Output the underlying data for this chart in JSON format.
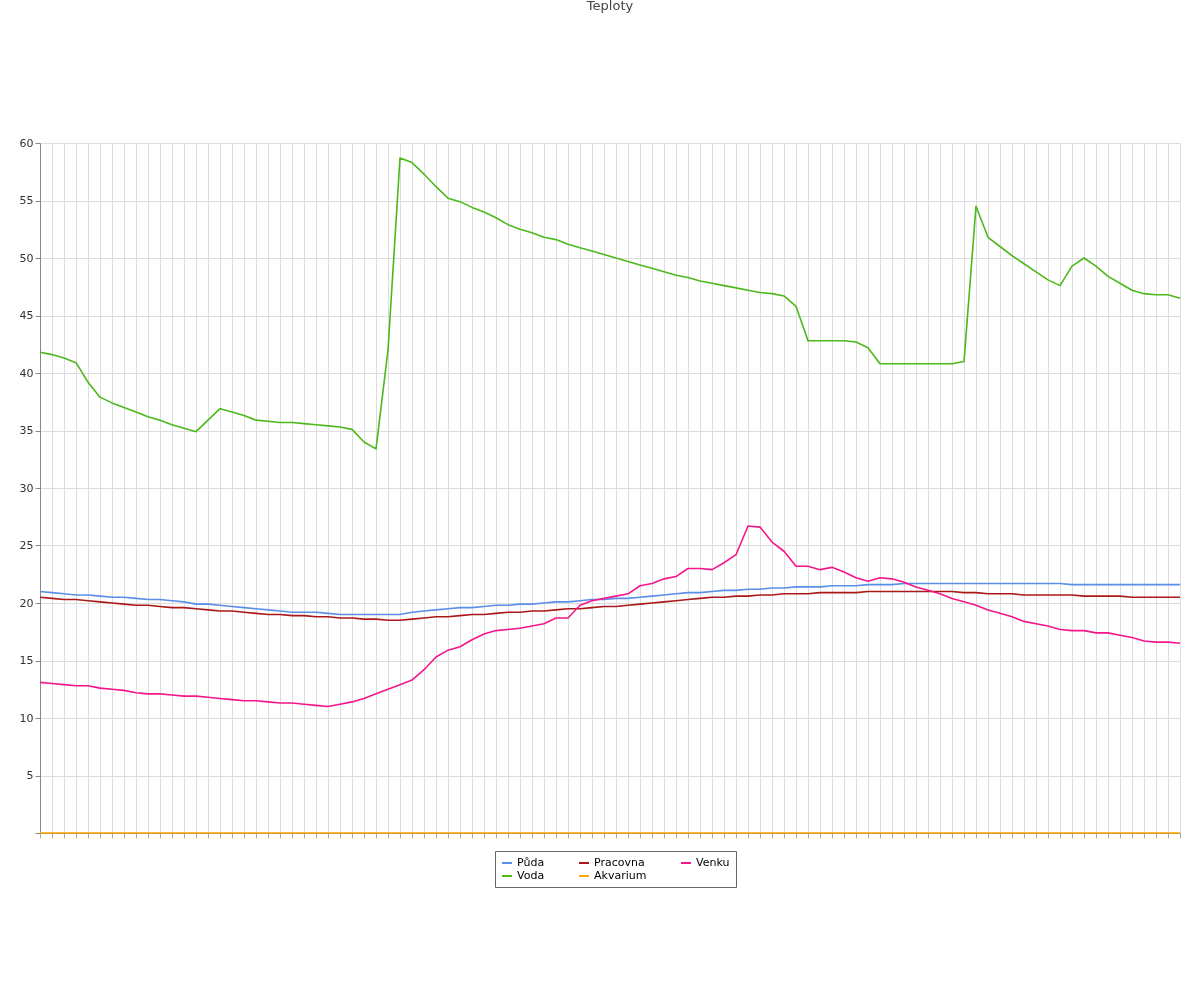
{
  "chart_data": {
    "type": "line",
    "title": "Teploty",
    "categories": [
      null,
      null,
      null,
      null,
      null,
      null,
      null,
      null,
      null,
      null,
      null,
      null,
      null,
      null,
      null,
      null,
      null,
      null,
      null,
      null,
      null,
      null,
      null,
      null,
      null,
      null,
      null,
      null,
      null,
      null,
      null,
      null,
      null,
      null,
      null,
      null,
      null,
      null,
      null,
      null,
      null,
      null,
      null,
      null,
      null,
      null,
      null,
      null,
      null,
      null,
      null,
      null,
      null,
      null,
      null,
      null,
      null,
      null,
      null,
      null,
      null,
      null,
      null,
      null,
      null,
      null,
      null,
      null,
      null,
      null,
      null,
      null,
      null,
      null,
      null,
      null,
      null,
      null,
      null,
      null,
      null,
      null,
      null,
      null,
      null,
      null,
      null,
      null,
      null,
      null,
      null,
      null,
      null,
      null,
      null,
      null
    ],
    "series": [
      {
        "name": "Půda",
        "color": "#5a8ee8",
        "values": [
          21.0,
          20.9,
          20.8,
          20.7,
          20.7,
          20.6,
          20.5,
          20.5,
          20.4,
          20.3,
          20.3,
          20.2,
          20.1,
          19.9,
          19.9,
          19.8,
          19.7,
          19.6,
          19.5,
          19.4,
          19.3,
          19.2,
          19.2,
          19.2,
          19.1,
          19.0,
          19.0,
          19.0,
          19.0,
          19.0,
          19.0,
          19.2,
          19.3,
          19.4,
          19.5,
          19.6,
          19.6,
          19.7,
          19.8,
          19.8,
          19.9,
          19.9,
          20.0,
          20.1,
          20.1,
          20.2,
          20.3,
          20.3,
          20.4,
          20.4,
          20.5,
          20.6,
          20.7,
          20.8,
          20.9,
          20.9,
          21.0,
          21.1,
          21.1,
          21.2,
          21.2,
          21.3,
          21.3,
          21.4,
          21.4,
          21.4,
          21.5,
          21.5,
          21.5,
          21.6,
          21.6,
          21.6,
          21.7,
          21.7,
          21.7,
          21.7,
          21.7,
          21.7,
          21.7,
          21.7,
          21.7,
          21.7,
          21.7,
          21.7,
          21.7,
          21.7,
          21.6,
          21.6,
          21.6,
          21.6,
          21.6,
          21.6,
          21.6,
          21.6,
          21.6,
          21.6
        ]
      },
      {
        "name": "Pracovna",
        "color": "#aa1818",
        "values": [
          20.5,
          20.4,
          20.3,
          20.3,
          20.2,
          20.1,
          20.0,
          19.9,
          19.8,
          19.8,
          19.7,
          19.6,
          19.6,
          19.5,
          19.4,
          19.3,
          19.3,
          19.2,
          19.1,
          19.0,
          19.0,
          18.9,
          18.9,
          18.8,
          18.8,
          18.7,
          18.7,
          18.6,
          18.6,
          18.5,
          18.5,
          18.6,
          18.7,
          18.8,
          18.8,
          18.9,
          19.0,
          19.0,
          19.1,
          19.2,
          19.2,
          19.3,
          19.3,
          19.4,
          19.5,
          19.5,
          19.6,
          19.7,
          19.7,
          19.8,
          19.9,
          20.0,
          20.1,
          20.2,
          20.3,
          20.4,
          20.5,
          20.5,
          20.6,
          20.6,
          20.7,
          20.7,
          20.8,
          20.8,
          20.8,
          20.9,
          20.9,
          20.9,
          20.9,
          21.0,
          21.0,
          21.0,
          21.0,
          21.0,
          21.0,
          21.0,
          21.0,
          20.9,
          20.9,
          20.8,
          20.8,
          20.8,
          20.7,
          20.7,
          20.7,
          20.7,
          20.7,
          20.6,
          20.6,
          20.6,
          20.6,
          20.5,
          20.5,
          20.5,
          20.5,
          20.5
        ]
      },
      {
        "name": "Venku",
        "color": "#f5168c",
        "values": [
          13.1,
          13.0,
          12.9,
          12.8,
          12.8,
          12.6,
          12.5,
          12.4,
          12.2,
          12.1,
          12.1,
          12.0,
          11.9,
          11.9,
          11.8,
          11.7,
          11.6,
          11.5,
          11.5,
          11.4,
          11.3,
          11.3,
          11.2,
          11.1,
          11.0,
          11.2,
          11.4,
          11.7,
          12.1,
          12.5,
          12.9,
          13.3,
          14.2,
          15.3,
          15.9,
          16.2,
          16.8,
          17.3,
          17.6,
          17.7,
          17.8,
          18.0,
          18.2,
          18.7,
          18.7,
          19.8,
          20.2,
          20.4,
          20.6,
          20.8,
          21.5,
          21.7,
          22.1,
          22.3,
          23.0,
          23.0,
          22.9,
          23.5,
          24.2,
          26.7,
          26.6,
          25.3,
          24.5,
          23.2,
          23.2,
          22.9,
          23.1,
          22.7,
          22.2,
          21.9,
          22.2,
          22.1,
          21.8,
          21.4,
          21.1,
          20.8,
          20.4,
          20.1,
          19.8,
          19.4,
          19.1,
          18.8,
          18.4,
          18.2,
          18.0,
          17.7,
          17.6,
          17.6,
          17.4,
          17.4,
          17.2,
          17.0,
          16.7,
          16.6,
          16.6,
          16.5
        ]
      },
      {
        "name": "Voda",
        "color": "#4cb81a",
        "values": [
          41.8,
          41.6,
          41.3,
          40.9,
          39.2,
          37.9,
          37.4,
          37.0,
          36.6,
          36.2,
          35.9,
          35.5,
          35.2,
          34.9,
          35.9,
          36.9,
          36.6,
          36.3,
          35.9,
          35.8,
          35.7,
          35.7,
          35.6,
          35.5,
          35.4,
          35.3,
          35.1,
          34.0,
          33.4,
          42.0,
          58.7,
          58.3,
          57.3,
          56.2,
          55.2,
          54.9,
          54.4,
          54.0,
          53.5,
          52.9,
          52.5,
          52.2,
          51.8,
          51.6,
          51.2,
          50.9,
          50.6,
          50.3,
          50.0,
          49.7,
          49.4,
          49.1,
          48.8,
          48.5,
          48.3,
          48.0,
          47.8,
          47.6,
          47.4,
          47.2,
          47.0,
          46.9,
          46.7,
          45.8,
          42.8,
          42.8,
          42.8,
          42.8,
          42.7,
          42.2,
          40.8,
          40.8,
          40.8,
          40.8,
          40.8,
          40.8,
          40.8,
          41.0,
          54.5,
          51.8,
          51.0,
          50.2,
          49.5,
          48.8,
          48.1,
          47.6,
          49.3,
          50.0,
          49.3,
          48.4,
          47.8,
          47.2,
          46.9,
          46.8,
          46.8,
          46.5
        ]
      },
      {
        "name": "Akvarium",
        "color": "#ffa500",
        "values": [
          0,
          0,
          0,
          0,
          0,
          0,
          0,
          0,
          0,
          0,
          0,
          0,
          0,
          0,
          0,
          0,
          0,
          0,
          0,
          0,
          0,
          0,
          0,
          0,
          0,
          0,
          0,
          0,
          0,
          0,
          0,
          0,
          0,
          0,
          0,
          0,
          0,
          0,
          0,
          0,
          0,
          0,
          0,
          0,
          0,
          0,
          0,
          0,
          0,
          0,
          0,
          0,
          0,
          0,
          0,
          0,
          0,
          0,
          0,
          0,
          0,
          0,
          0,
          0,
          0,
          0,
          0,
          0,
          0,
          0,
          0,
          0,
          0,
          0,
          0,
          0,
          0,
          0,
          0,
          0,
          0,
          0,
          0,
          0,
          0,
          0,
          0,
          0,
          0,
          0,
          0,
          0,
          0,
          0,
          0,
          0
        ]
      }
    ],
    "ylim": [
      0,
      60
    ],
    "yticks": [
      {
        "value": 0,
        "label": null
      },
      5,
      10,
      15,
      20,
      25,
      30,
      35,
      40,
      45,
      50,
      55,
      60
    ],
    "tick_labels": "y",
    "grid": true,
    "legend": "bottom",
    "marker": "none",
    "line_style": "solid"
  }
}
